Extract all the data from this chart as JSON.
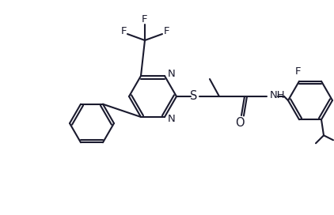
{
  "bg_color": "#ffffff",
  "line_color": "#1a1a2e",
  "bond_lw": 1.5,
  "font_size": 9.5,
  "figsize": [
    4.22,
    2.72
  ],
  "dpi": 100,
  "xlim": [
    0,
    422
  ],
  "ylim": [
    0,
    272
  ]
}
